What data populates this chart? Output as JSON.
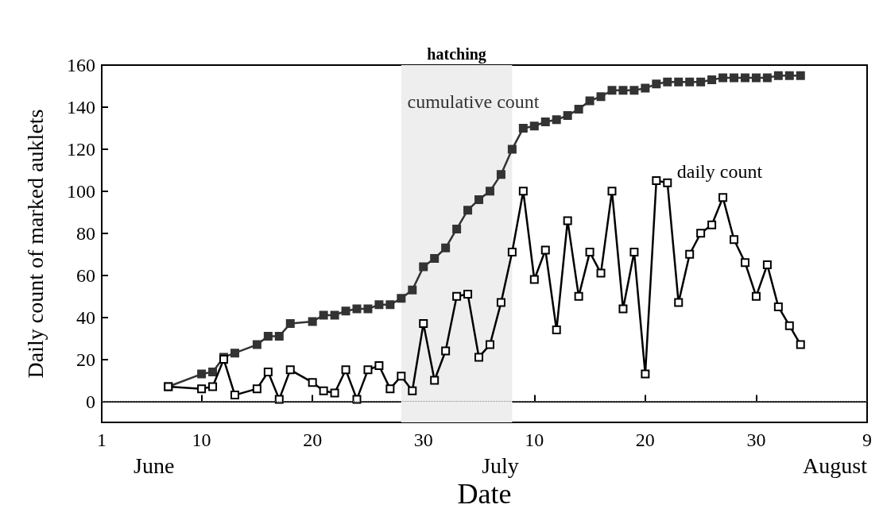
{
  "chart_data": {
    "type": "line",
    "xlabel": "Date",
    "ylabel": "Daily count of marked auklets",
    "x": [
      "--06-07",
      "--06-10",
      "--06-11",
      "--06-12",
      "--06-13",
      "--06-15",
      "--06-16",
      "--06-17",
      "--06-18",
      "--06-20",
      "--06-21",
      "--06-22",
      "--06-23",
      "--06-24",
      "--06-25",
      "--06-26",
      "--06-27",
      "--06-28",
      "--06-29",
      "--06-30",
      "--07-01",
      "--07-02",
      "--07-03",
      "--07-04",
      "--07-05",
      "--07-06",
      "--07-07",
      "--07-08",
      "--07-09",
      "--07-10",
      "--07-11",
      "--07-12",
      "--07-13",
      "--07-14",
      "--07-15",
      "--07-16",
      "--07-17",
      "--07-18",
      "--07-19",
      "--07-20",
      "--07-21",
      "--07-22",
      "--07-23",
      "--07-24",
      "--07-25",
      "--07-26",
      "--07-27",
      "--07-28",
      "--07-29",
      "--07-30",
      "--07-31",
      "--08-01",
      "--08-02",
      "--08-03"
    ],
    "series": [
      {
        "name": "cumulative count",
        "color": "#333333",
        "values": [
          7,
          13,
          14,
          21,
          23,
          27,
          31,
          31,
          37,
          38,
          41,
          41,
          43,
          44,
          44,
          46,
          46,
          49,
          53,
          64,
          68,
          73,
          82,
          91,
          96,
          100,
          108,
          120,
          130,
          131,
          133,
          134,
          136,
          139,
          143,
          145,
          148,
          148,
          148,
          149,
          151,
          152,
          152,
          152,
          152,
          153,
          154,
          154,
          154,
          154,
          154,
          155,
          155,
          155
        ]
      },
      {
        "name": "daily count",
        "color": "#000000",
        "values": [
          7,
          6,
          7,
          20,
          3,
          6,
          14,
          1,
          15,
          9,
          5,
          4,
          15,
          1,
          15,
          17,
          6,
          12,
          5,
          37,
          10,
          24,
          50,
          51,
          21,
          27,
          47,
          71,
          100,
          58,
          72,
          34,
          86,
          50,
          71,
          61,
          100,
          44,
          71,
          13,
          105,
          104,
          47,
          70,
          80,
          84,
          97,
          77,
          66,
          50,
          65,
          45,
          36,
          27
        ]
      }
    ],
    "xlim": [
      "--06-01",
      "--08-09"
    ],
    "xticks": [
      {
        "value": "--06-01",
        "label": "1"
      },
      {
        "value": "--06-10",
        "label": "10"
      },
      {
        "value": "--06-20",
        "label": "20"
      },
      {
        "value": "--06-30",
        "label": "30"
      },
      {
        "value": "--07-10",
        "label": "10"
      },
      {
        "value": "--07-20",
        "label": "20"
      },
      {
        "value": "--07-30",
        "label": "30"
      },
      {
        "value": "--08-09",
        "label": "9"
      }
    ],
    "ylim": [
      -10,
      160
    ],
    "yticks": [
      0,
      20,
      40,
      60,
      80,
      100,
      120,
      140,
      160
    ],
    "ref_lines": [
      {
        "axis": "y",
        "value": 0,
        "color": "#888888",
        "line_style": "dotted"
      }
    ],
    "bands": [
      {
        "axis": "x",
        "from": "--06-28",
        "to": "--07-08",
        "label": "hatching",
        "color": "#eeeeee"
      }
    ],
    "annotations": [
      "June",
      "July",
      "August"
    ],
    "marker": "square",
    "line_style": "solid",
    "grid": false,
    "legend": false
  }
}
